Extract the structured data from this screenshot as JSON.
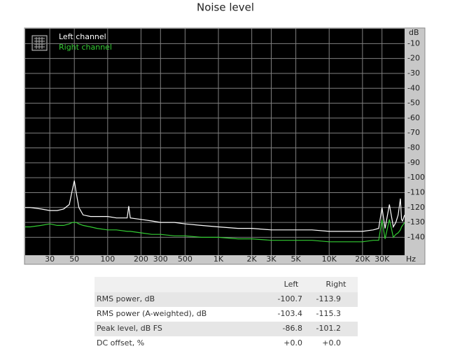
{
  "chart_data": {
    "type": "line",
    "title": "Noise level",
    "y_label": "dB",
    "x_label": "Hz",
    "log_x": true,
    "grid": true,
    "background": "#000000",
    "xlim": [
      18,
      48000
    ],
    "ylim": [
      -152,
      0
    ],
    "xticks": [
      30,
      50,
      100,
      200,
      300,
      500,
      {
        "value": 1000,
        "label": "1K"
      },
      {
        "value": 2000,
        "label": "2K"
      },
      {
        "value": 3000,
        "label": "3K"
      },
      {
        "value": 5000,
        "label": "5K"
      },
      {
        "value": 10000,
        "label": "10K"
      },
      {
        "value": 20000,
        "label": "20K"
      },
      {
        "value": 30000,
        "label": "30K"
      }
    ],
    "yticks": [
      -10,
      -20,
      -30,
      -40,
      -50,
      -60,
      -70,
      -80,
      -90,
      -100,
      -110,
      -120,
      -130,
      -140
    ],
    "x": [
      18,
      20,
      25,
      30,
      35,
      40,
      45,
      48,
      50,
      52,
      55,
      60,
      70,
      80,
      100,
      120,
      150,
      155,
      160,
      200,
      250,
      300,
      400,
      500,
      700,
      1000,
      1500,
      2000,
      3000,
      5000,
      7000,
      10000,
      15000,
      20000,
      25000,
      28000,
      30000,
      32000,
      35000,
      38000,
      40000,
      42000,
      44000,
      45000,
      46000,
      48000
    ],
    "series": [
      {
        "name": "Left channel",
        "color": "#ffffff",
        "values": [
          -120,
          -120,
          -121,
          -122,
          -122,
          -121,
          -118,
          -108,
          -102,
          -110,
          -120,
          -125,
          -126,
          -126,
          -126,
          -127,
          -127,
          -119,
          -127,
          -128,
          -129,
          -130,
          -130,
          -131,
          -132,
          -133,
          -134,
          -134,
          -135,
          -135,
          -135,
          -136,
          -136,
          -136,
          -135,
          -134,
          -120,
          -134,
          -118,
          -133,
          -130,
          -125,
          -114,
          -128,
          -129,
          -125
        ]
      },
      {
        "name": "Right channel",
        "color": "#33cc33",
        "values": [
          -133,
          -133,
          -132,
          -131,
          -132,
          -132,
          -131,
          -130,
          -130,
          -130,
          -131,
          -132,
          -133,
          -134,
          -135,
          -135,
          -136,
          -136,
          -136,
          -137,
          -138,
          -138,
          -139,
          -139,
          -140,
          -140,
          -141,
          -141,
          -142,
          -142,
          -142,
          -143,
          -143,
          -143,
          -142,
          -142,
          -128,
          -141,
          -128,
          -140,
          -138,
          -137,
          -135,
          -133,
          -132,
          -130
        ]
      }
    ]
  },
  "table": {
    "header": [
      "Left",
      "Right"
    ],
    "rows": [
      [
        "RMS power, dB",
        -100.7,
        -113.9
      ],
      [
        "RMS power (A-weighted), dB",
        -103.4,
        -115.3
      ],
      [
        "Peak level, dB FS",
        -86.8,
        -101.2
      ],
      [
        "DC offset, %",
        "+0.0",
        "+0.0"
      ]
    ]
  }
}
